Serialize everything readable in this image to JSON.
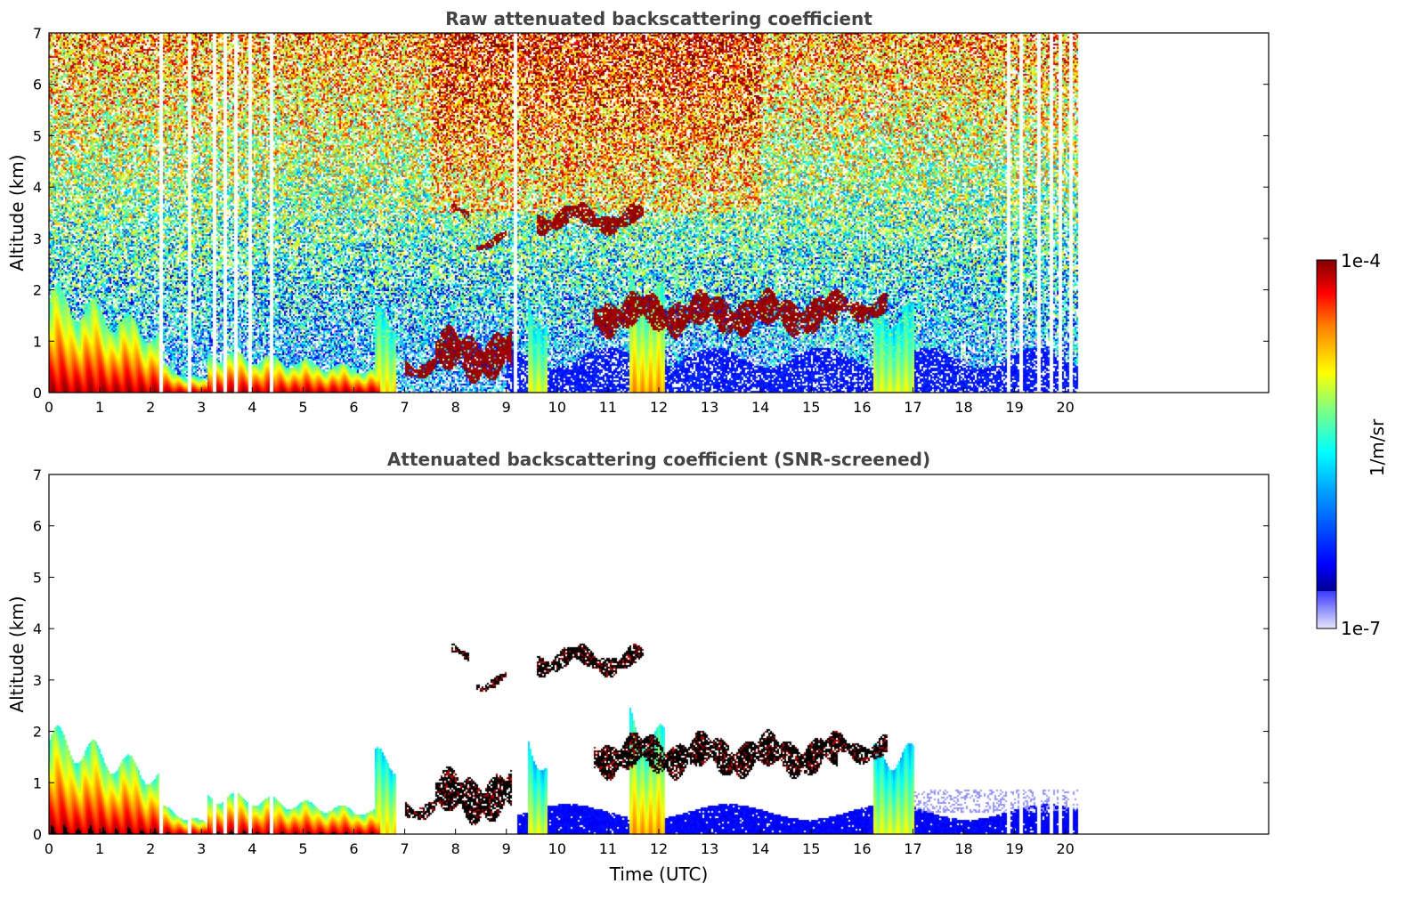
{
  "colors": {
    "colormap": "jet",
    "low": "#0000ff",
    "high": "#800000",
    "below_min": "#e6e6fa",
    "frame": "#000000",
    "title": "#444444"
  },
  "chart_data": [
    {
      "type": "heatmap",
      "title": "Raw attenuated backscattering coefficient",
      "xlabel": "",
      "ylabel": "Altitude (km)",
      "xlim": [
        0,
        24
      ],
      "ylim": [
        0,
        7
      ],
      "xticks": [
        0,
        1,
        2,
        3,
        4,
        5,
        6,
        7,
        8,
        9,
        10,
        11,
        12,
        13,
        14,
        15,
        16,
        17,
        18,
        19,
        20
      ],
      "yticks": [
        0,
        1,
        2,
        3,
        4,
        5,
        6,
        7
      ],
      "data_end_time": 20.25,
      "gaps_time": [
        2.2,
        2.75,
        3.25,
        3.45,
        3.65,
        3.95,
        4.35,
        9.15,
        18.85,
        19.1,
        19.45,
        19.7,
        19.9,
        20.1
      ],
      "features": [
        {
          "kind": "boundary-layer aerosol",
          "t": [
            0,
            2.2
          ],
          "top_km": [
            2.2,
            1.3
          ],
          "level": 0.9
        },
        {
          "kind": "boundary-layer aerosol",
          "t": [
            2.2,
            3.1
          ],
          "top_km": [
            0.6,
            0.25
          ],
          "level": 0.9
        },
        {
          "kind": "boundary-layer aerosol",
          "t": [
            3.1,
            6.5
          ],
          "top_km": [
            0.9,
            0.5
          ],
          "level": 0.9
        },
        {
          "kind": "aerosol plume",
          "t": [
            6.4,
            6.8
          ],
          "top_km": [
            1.7,
            1.7
          ],
          "level": 0.65
        },
        {
          "kind": "cloud",
          "t": [
            7.0,
            7.6
          ],
          "base_km": 0.4,
          "top_km": 0.7
        },
        {
          "kind": "cloud",
          "t": [
            7.6,
            9.1
          ],
          "base_km": 0.3,
          "top_km": 1.2
        },
        {
          "kind": "cloud",
          "t": [
            7.9,
            8.25
          ],
          "base_km": 3.4,
          "top_km": 3.6
        },
        {
          "kind": "cloud",
          "t": [
            8.4,
            9.0
          ],
          "base_km": 2.9,
          "top_km": 3.1
        },
        {
          "kind": "cloud",
          "t": [
            9.6,
            11.7
          ],
          "base_km": 3.2,
          "top_km": 3.6
        },
        {
          "kind": "aerosol plume",
          "t": [
            9.4,
            9.8
          ],
          "top_km": [
            2.2,
            1.5
          ],
          "level": 0.6
        },
        {
          "kind": "aerosol plume",
          "t": [
            11.4,
            12.1
          ],
          "top_km": [
            2.6,
            2.1
          ],
          "level": 0.72
        },
        {
          "kind": "cloud",
          "t": [
            10.7,
            15.5
          ],
          "base_km": 1.2,
          "top_km": 1.9
        },
        {
          "kind": "cloud",
          "t": [
            15.5,
            16.5
          ],
          "base_km": 1.5,
          "top_km": 1.9
        },
        {
          "kind": "aerosol plume",
          "t": [
            16.2,
            17.0
          ],
          "top_km": [
            1.8,
            1.8
          ],
          "level": 0.6
        },
        {
          "kind": "clear-air noise",
          "t": [
            0,
            20.25
          ],
          "top_km": [
            7,
            7
          ],
          "level": 0.45
        }
      ]
    },
    {
      "type": "heatmap",
      "title": "Attenuated backscattering coefficient (SNR-screened)",
      "xlabel": "Time (UTC)",
      "ylabel": "Altitude (km)",
      "xlim": [
        0,
        24
      ],
      "ylim": [
        0,
        7
      ],
      "xticks": [
        0,
        1,
        2,
        3,
        4,
        5,
        6,
        7,
        8,
        9,
        10,
        11,
        12,
        13,
        14,
        15,
        16,
        17,
        18,
        19,
        20
      ],
      "yticks": [
        0,
        1,
        2,
        3,
        4,
        5,
        6,
        7
      ],
      "data_end_time": 20.25,
      "screened": true
    }
  ],
  "colorbar": {
    "label": "1/m/sr",
    "max_label": "1e-4",
    "min_label": "1e-7",
    "vmin": 1e-07,
    "vmax": 0.0001,
    "scale": "log"
  }
}
